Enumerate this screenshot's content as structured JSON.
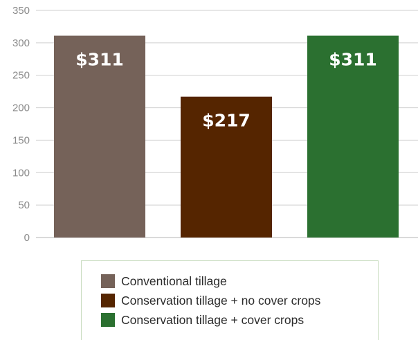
{
  "chart_data": {
    "type": "bar",
    "categories": [
      "Conventional tillage",
      "Conservation tillage + no cover crops",
      "Conservation tillage + cover crops"
    ],
    "values": [
      311,
      217,
      311
    ],
    "value_labels": [
      "$311",
      "$217",
      "$311"
    ],
    "colors": [
      "#756259",
      "#552500",
      "#2b7030"
    ],
    "ylim": [
      0,
      350
    ],
    "yticks": [
      0,
      50,
      100,
      150,
      200,
      250,
      300,
      350
    ],
    "grid": true,
    "legend_position": "bottom"
  },
  "legend": {
    "items": [
      {
        "label": "Conventional tillage",
        "color": "#756259"
      },
      {
        "label": "Conservation tillage + no cover crops",
        "color": "#552500"
      },
      {
        "label": "Conservation tillage + cover crops",
        "color": "#2b7030"
      }
    ]
  }
}
